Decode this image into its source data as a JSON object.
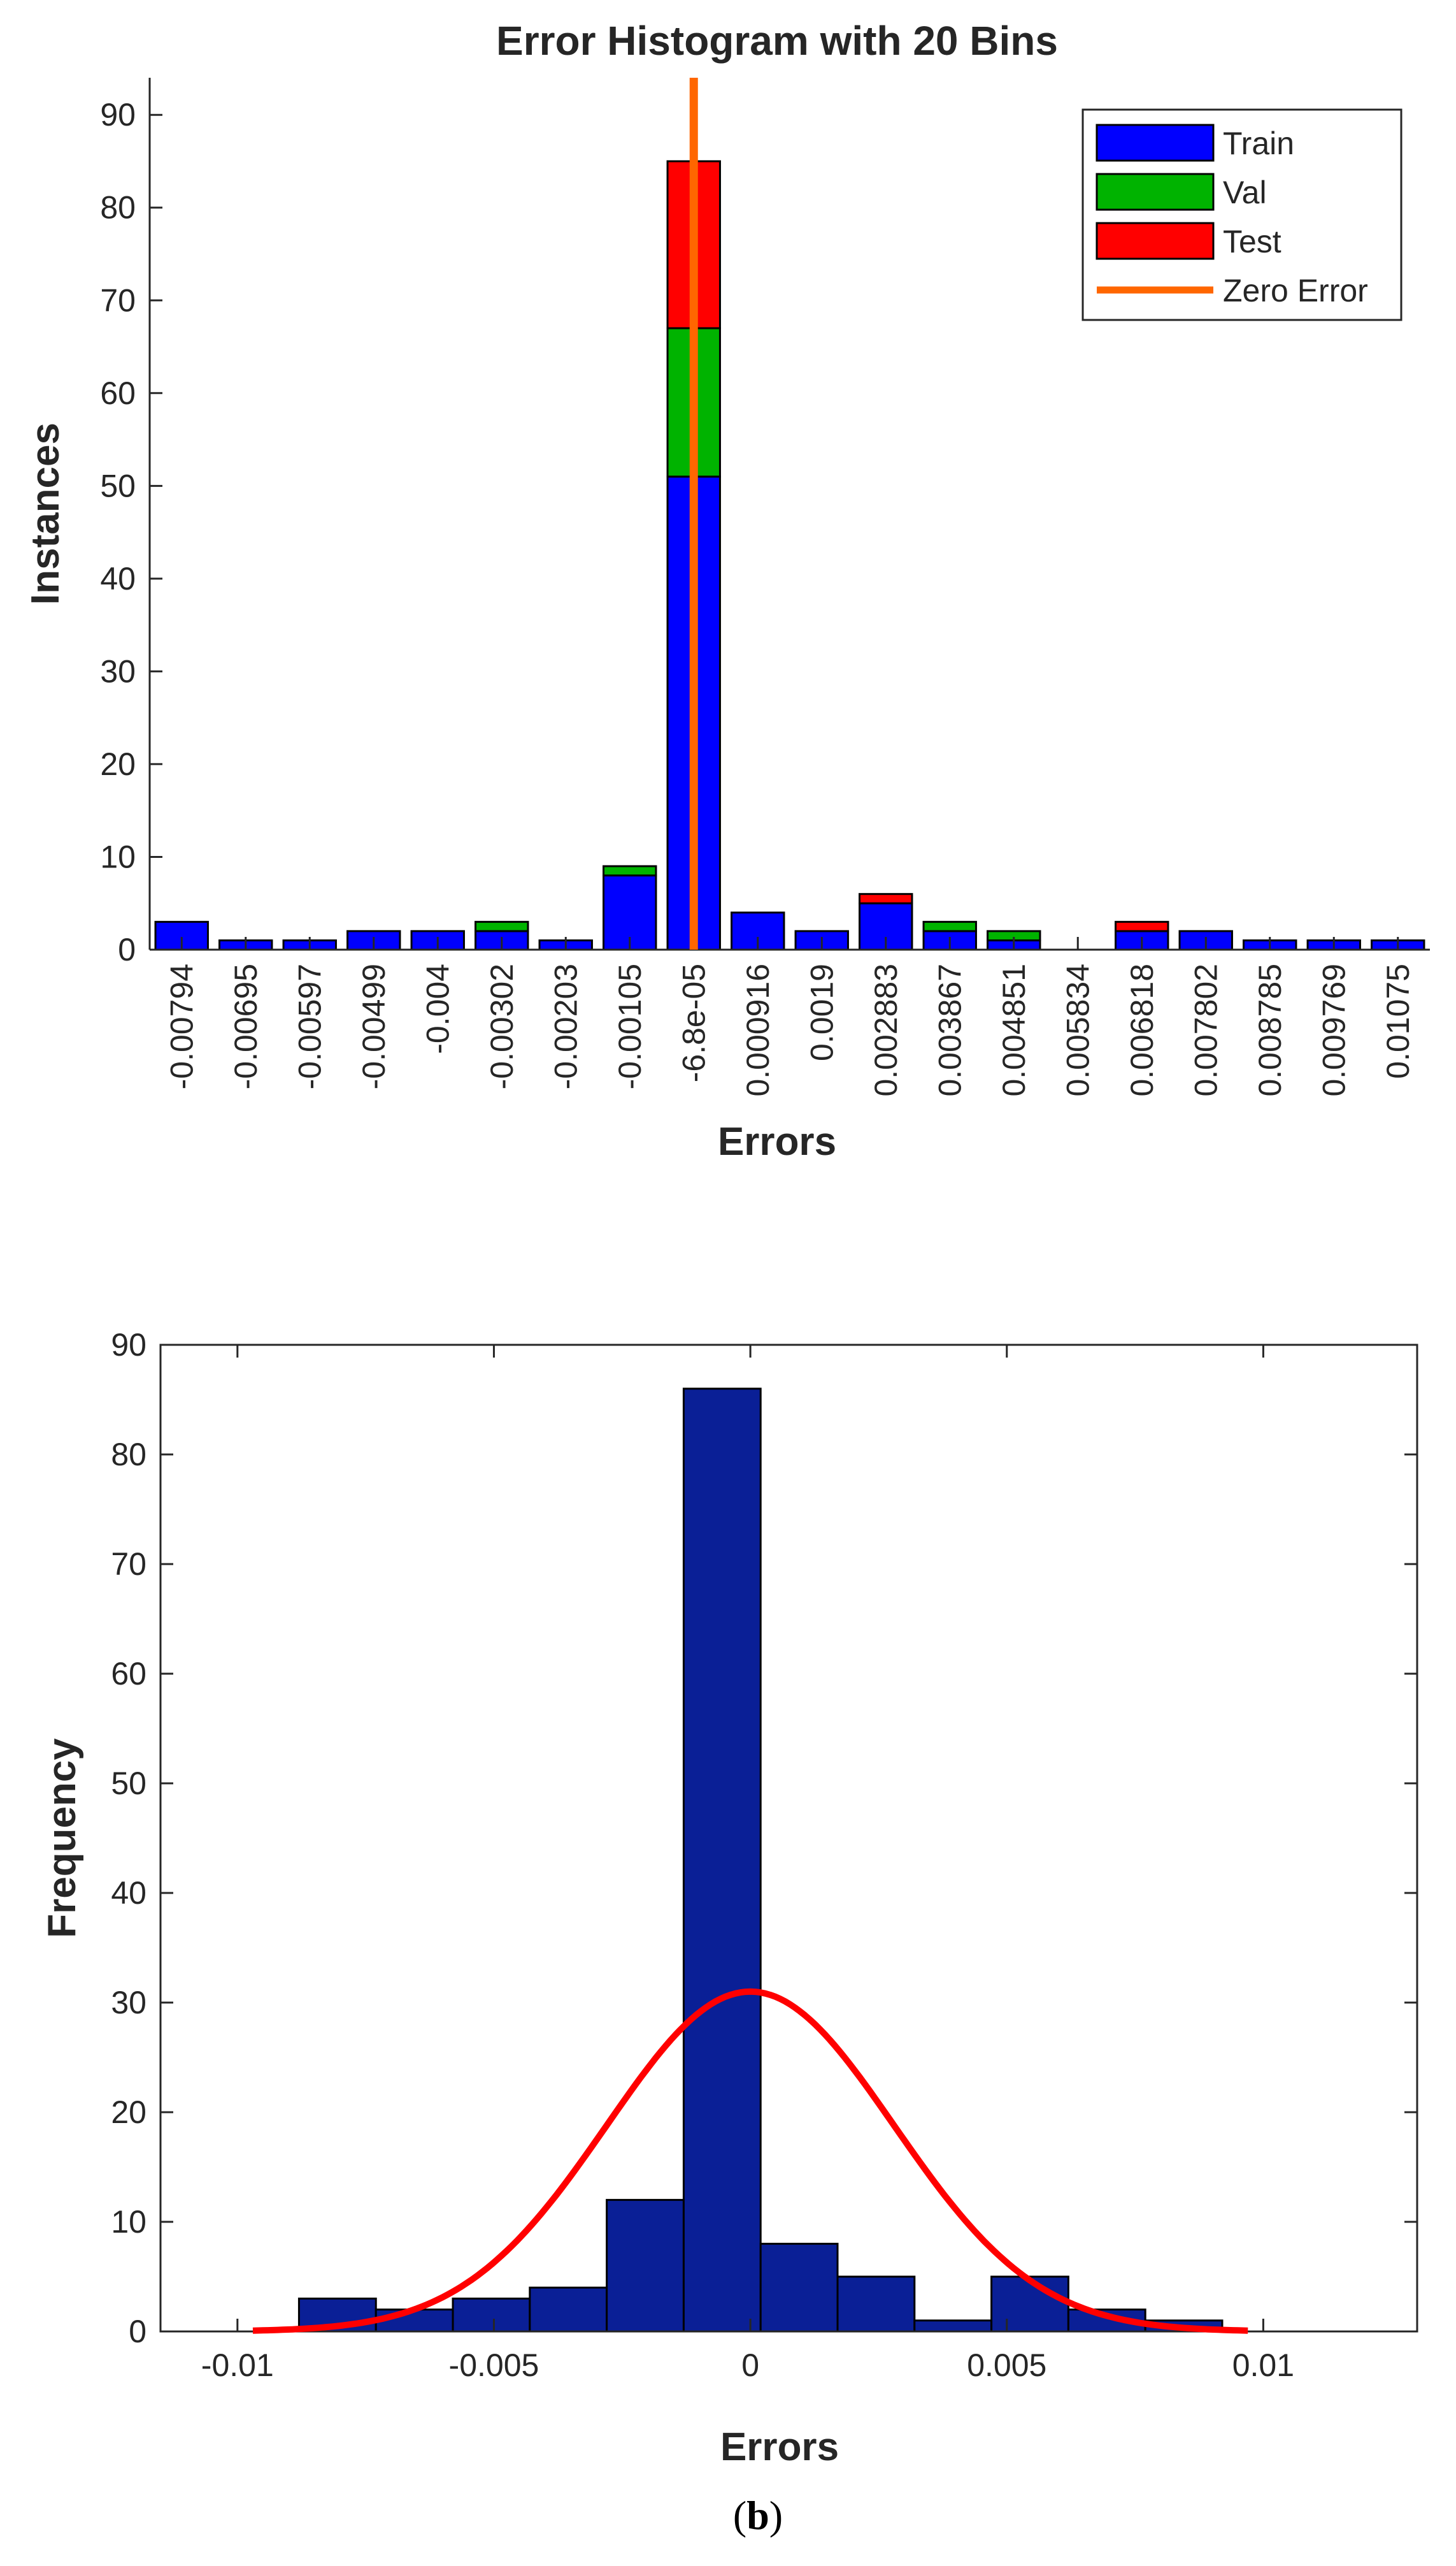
{
  "caption": {
    "open": "(",
    "letter": "b",
    "close": ")"
  },
  "chart_data": [
    {
      "type": "bar",
      "stacked": true,
      "title": "Error Histogram with 20 Bins",
      "xlabel": "Errors",
      "ylabel": "Instances",
      "ylim": [
        0,
        94
      ],
      "yticks": [
        0,
        10,
        20,
        30,
        40,
        50,
        60,
        70,
        80,
        90
      ],
      "categories": [
        "-0.00794",
        "-0.00695",
        "-0.00597",
        "-0.00499",
        "-0.004",
        "-0.00302",
        "-0.00203",
        "-0.00105",
        "-6.8e-05",
        "0.000916",
        "0.0019",
        "0.002883",
        "0.003867",
        "0.004851",
        "0.005834",
        "0.006818",
        "0.007802",
        "0.008785",
        "0.009769",
        "0.01075"
      ],
      "series": [
        {
          "name": "Train",
          "color": "#0000ff",
          "values": [
            3,
            1,
            1,
            2,
            2,
            2,
            1,
            8,
            51,
            4,
            2,
            5,
            2,
            1,
            0,
            2,
            2,
            1,
            1,
            1
          ]
        },
        {
          "name": "Val",
          "color": "#00b300",
          "values": [
            0,
            0,
            0,
            0,
            0,
            1,
            0,
            1,
            16,
            0,
            0,
            0,
            1,
            1,
            0,
            0,
            0,
            0,
            0,
            0
          ]
        },
        {
          "name": "Test",
          "color": "#ff0000",
          "values": [
            0,
            0,
            0,
            0,
            0,
            0,
            0,
            0,
            18,
            0,
            0,
            1,
            0,
            0,
            0,
            1,
            0,
            0,
            0,
            0
          ]
        }
      ],
      "zero_error": {
        "name": "Zero Error",
        "color": "#ff6600",
        "bin_index": 8,
        "offset_in_bin": 0.5
      },
      "legend": "top-right",
      "grid": false
    },
    {
      "type": "bar",
      "title": "",
      "xlabel": "Errors",
      "ylabel": "Frequency",
      "xlim": [
        -0.0115,
        0.013
      ],
      "ylim": [
        0,
        90
      ],
      "xticks": [
        -0.01,
        -0.005,
        0,
        0.005,
        0.01
      ],
      "xtick_labels": [
        "-0.01",
        "-0.005",
        "0",
        "0.005",
        "0.01"
      ],
      "yticks": [
        0,
        10,
        20,
        30,
        40,
        50,
        60,
        70,
        80,
        90
      ],
      "bar_color": "#0a1f96",
      "bins": [
        {
          "x0": -0.0088,
          "x1": -0.0073,
          "count": 3
        },
        {
          "x0": -0.0073,
          "x1": -0.0058,
          "count": 2
        },
        {
          "x0": -0.0058,
          "x1": -0.0043,
          "count": 3
        },
        {
          "x0": -0.0043,
          "x1": -0.0028,
          "count": 4
        },
        {
          "x0": -0.0028,
          "x1": -0.0013,
          "count": 12
        },
        {
          "x0": -0.0013,
          "x1": 0.0002,
          "count": 86
        },
        {
          "x0": 0.0002,
          "x1": 0.0017,
          "count": 8
        },
        {
          "x0": 0.0017,
          "x1": 0.0032,
          "count": 5
        },
        {
          "x0": 0.0032,
          "x1": 0.0047,
          "count": 1
        },
        {
          "x0": 0.0047,
          "x1": 0.0062,
          "count": 5
        },
        {
          "x0": 0.0062,
          "x1": 0.0077,
          "count": 2
        },
        {
          "x0": 0.0077,
          "x1": 0.0092,
          "count": 1
        }
      ],
      "fit_curve": {
        "type": "normal",
        "color": "#ff0000",
        "mean": 0.0,
        "sd": 0.0028,
        "peak": 31,
        "x_start": -0.0097,
        "x_end": 0.0097
      },
      "legend": "none",
      "grid": false
    }
  ]
}
